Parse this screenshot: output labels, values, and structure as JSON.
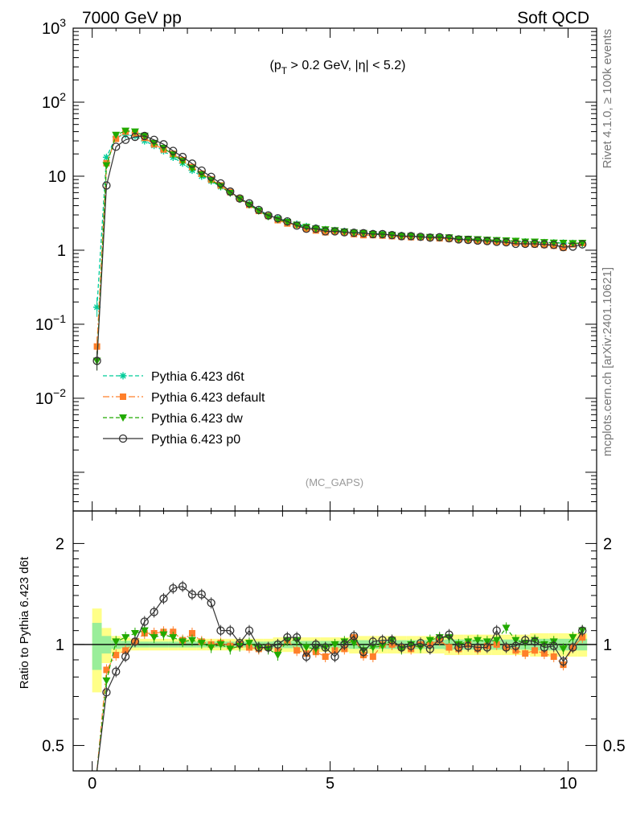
{
  "header": {
    "left": "7000 GeV pp",
    "right": "Soft QCD"
  },
  "cut_label": "(p_T > 0.2 GeV, |η| < 5.2)",
  "analysis_tag": "(MC_GAPS)",
  "side_labels": {
    "rivet": "Rivet 4.1.0, ≥ 100k events",
    "mcplots": "mcplots.cern.ch [arXiv:2401.10621]"
  },
  "colors": {
    "d6t": "#00cc99",
    "default": "#ff7f2a",
    "dw": "#22aa00",
    "p0": "#333333",
    "band_outer": "#ffff88",
    "band_inner": "#99ee99"
  },
  "chart_data": [
    {
      "type": "line",
      "title": "",
      "xlabel": "",
      "ylabel": "",
      "yscale": "log",
      "xlim": [
        -0.4,
        10.6
      ],
      "ylim": [
        0.0003,
        1000
      ],
      "ytick_labels": [
        "10^3",
        "10^2",
        "10",
        "1",
        "10^-1",
        "10^-2"
      ],
      "x": [
        0.1,
        0.3,
        0.5,
        0.7,
        0.9,
        1.1,
        1.3,
        1.5,
        1.7,
        1.9,
        2.1,
        2.3,
        2.5,
        2.7,
        2.9,
        3.1,
        3.3,
        3.5,
        3.7,
        3.9,
        4.1,
        4.3,
        4.5,
        4.7,
        4.9,
        5.1,
        5.3,
        5.5,
        5.7,
        5.9,
        6.1,
        6.3,
        6.5,
        6.7,
        6.9,
        7.1,
        7.3,
        7.5,
        7.7,
        7.9,
        8.1,
        8.3,
        8.5,
        8.7,
        8.9,
        9.1,
        9.3,
        9.5,
        9.7,
        9.9,
        10.1,
        10.3
      ],
      "legend": [
        "Pythia 6.423 d6t",
        "Pythia 6.423 default",
        "Pythia 6.423 dw",
        "Pythia 6.423 p0"
      ],
      "series": [
        {
          "name": "Pythia 6.423 d6t",
          "key": "d6t",
          "style": "dashed",
          "marker": "star",
          "values": [
            0.17,
            18,
            34,
            36,
            35,
            30,
            26,
            22,
            18,
            15,
            12,
            10,
            8.6,
            7.2,
            6.0,
            5.0,
            4.2,
            3.5,
            3.0,
            2.7,
            2.45,
            2.25,
            2.1,
            2.0,
            1.9,
            1.85,
            1.8,
            1.75,
            1.7,
            1.68,
            1.65,
            1.6,
            1.58,
            1.55,
            1.52,
            1.5,
            1.48,
            1.45,
            1.42,
            1.4,
            1.38,
            1.36,
            1.35,
            1.33,
            1.32,
            1.3,
            1.28,
            1.27,
            1.26,
            1.25,
            1.24,
            1.23
          ]
        },
        {
          "name": "Pythia 6.423 default",
          "key": "default",
          "style": "dashdot",
          "marker": "square",
          "values": [
            0.05,
            15,
            32,
            40,
            38,
            33,
            27,
            23,
            20,
            16.5,
            13.3,
            10.8,
            9.0,
            7.5,
            6.1,
            5.0,
            4.1,
            3.4,
            2.9,
            2.55,
            2.3,
            2.2,
            1.95,
            1.85,
            1.75,
            1.8,
            1.75,
            1.65,
            1.6,
            1.6,
            1.58,
            1.55,
            1.52,
            1.5,
            1.5,
            1.48,
            1.45,
            1.43,
            1.4,
            1.38,
            1.35,
            1.33,
            1.3,
            1.28,
            1.26,
            1.22,
            1.2,
            1.18,
            1.15,
            1.08,
            1.2,
            1.25
          ]
        },
        {
          "name": "Pythia 6.423 dw",
          "key": "dw",
          "style": "dashed",
          "marker": "triangle-down",
          "values": [
            0.032,
            14,
            36,
            41,
            40,
            35,
            28,
            24,
            19.5,
            16,
            12.8,
            10.5,
            8.8,
            7.3,
            5.9,
            4.9,
            4.1,
            3.4,
            2.85,
            2.6,
            2.4,
            2.2,
            2.05,
            1.95,
            1.9,
            1.85,
            1.78,
            1.72,
            1.7,
            1.65,
            1.62,
            1.6,
            1.55,
            1.55,
            1.5,
            1.5,
            1.48,
            1.48,
            1.42,
            1.42,
            1.4,
            1.38,
            1.36,
            1.35,
            1.33,
            1.3,
            1.3,
            1.28,
            1.26,
            1.25,
            1.24,
            1.25
          ]
        },
        {
          "name": "Pythia 6.423 p0",
          "key": "p0",
          "style": "solid",
          "marker": "circle-open",
          "values": [
            0.032,
            7.5,
            25,
            31,
            34,
            35,
            31,
            27,
            22,
            18.2,
            14.8,
            11.9,
            9.8,
            8.0,
            6.2,
            5.0,
            4.3,
            3.5,
            2.95,
            2.7,
            2.45,
            2.15,
            1.95,
            1.95,
            1.8,
            1.8,
            1.75,
            1.72,
            1.7,
            1.65,
            1.65,
            1.6,
            1.55,
            1.55,
            1.52,
            1.48,
            1.5,
            1.45,
            1.4,
            1.38,
            1.35,
            1.33,
            1.3,
            1.28,
            1.22,
            1.22,
            1.22,
            1.2,
            1.18,
            1.1,
            1.12,
            1.2
          ]
        }
      ]
    },
    {
      "type": "line",
      "title": "",
      "xlabel": "",
      "ylabel": "Ratio to Pythia 6.423 d6t",
      "yscale": "log",
      "xlim": [
        -0.4,
        10.6
      ],
      "ylim": [
        0.42,
        2.5
      ],
      "yticks": [
        0.5,
        1,
        2
      ],
      "ytick_labels": [
        "0.5",
        "1",
        "2"
      ],
      "xticks": [
        0,
        5,
        10
      ],
      "xtick_labels": [
        "0",
        "5",
        "10"
      ],
      "x": [
        0.1,
        0.3,
        0.5,
        0.7,
        0.9,
        1.1,
        1.3,
        1.5,
        1.7,
        1.9,
        2.1,
        2.3,
        2.5,
        2.7,
        2.9,
        3.1,
        3.3,
        3.5,
        3.7,
        3.9,
        4.1,
        4.3,
        4.5,
        4.7,
        4.9,
        5.1,
        5.3,
        5.5,
        5.7,
        5.9,
        6.1,
        6.3,
        6.5,
        6.7,
        6.9,
        7.1,
        7.3,
        7.5,
        7.7,
        7.9,
        8.1,
        8.3,
        8.5,
        8.7,
        8.9,
        9.1,
        9.3,
        9.5,
        9.7,
        9.9,
        10.1,
        10.3
      ],
      "band_outer_halfwidth": [
        0.28,
        0.12,
        0.06,
        0.05,
        0.04,
        0.04,
        0.04,
        0.04,
        0.04,
        0.04,
        0.04,
        0.04,
        0.04,
        0.04,
        0.04,
        0.04,
        0.04,
        0.04,
        0.04,
        0.05,
        0.05,
        0.05,
        0.05,
        0.05,
        0.05,
        0.05,
        0.05,
        0.06,
        0.06,
        0.06,
        0.06,
        0.06,
        0.06,
        0.06,
        0.06,
        0.06,
        0.06,
        0.07,
        0.07,
        0.07,
        0.07,
        0.07,
        0.07,
        0.07,
        0.07,
        0.07,
        0.08,
        0.08,
        0.08,
        0.08,
        0.08,
        0.08
      ],
      "band_inner_halfwidth": [
        0.16,
        0.06,
        0.03,
        0.025,
        0.02,
        0.02,
        0.02,
        0.02,
        0.02,
        0.02,
        0.02,
        0.02,
        0.02,
        0.02,
        0.02,
        0.02,
        0.02,
        0.02,
        0.02,
        0.025,
        0.025,
        0.025,
        0.025,
        0.025,
        0.025,
        0.025,
        0.025,
        0.03,
        0.03,
        0.03,
        0.03,
        0.03,
        0.03,
        0.03,
        0.03,
        0.03,
        0.03,
        0.035,
        0.035,
        0.035,
        0.035,
        0.035,
        0.035,
        0.035,
        0.035,
        0.035,
        0.04,
        0.04,
        0.04,
        0.04,
        0.04,
        0.04
      ],
      "series": [
        {
          "name": "Pythia 6.423 default",
          "key": "default",
          "style": "dashdot",
          "marker": "square",
          "values": [
            0.3,
            0.84,
            0.93,
            0.96,
            1.02,
            1.08,
            1.08,
            1.09,
            1.09,
            1.03,
            1.08,
            1.02,
            1.0,
            1.01,
            0.99,
            1.0,
            0.98,
            0.97,
            0.98,
            0.96,
            1.03,
            0.96,
            0.94,
            0.95,
            0.92,
            0.96,
            0.97,
            1.05,
            0.93,
            0.92,
            1.0,
            1.0,
            0.98,
            0.97,
            1.0,
            1.0,
            1.03,
            0.98,
            0.97,
            1.0,
            0.97,
            0.99,
            1.0,
            0.98,
            0.96,
            0.94,
            0.96,
            0.94,
            0.92,
            0.87,
            0.98,
            1.05
          ]
        },
        {
          "name": "Pythia 6.423 dw",
          "key": "dw",
          "style": "dashed",
          "marker": "triangle-down",
          "values": [
            0.3,
            0.78,
            1.02,
            1.05,
            1.08,
            1.1,
            1.05,
            1.07,
            1.05,
            1.02,
            1.03,
            1.01,
            0.98,
            1.0,
            0.97,
            0.99,
            1.01,
            0.98,
            0.97,
            0.93,
            1.03,
            1.03,
            0.98,
            0.97,
            0.98,
            1.0,
            1.02,
            1.01,
            0.96,
            0.98,
            0.99,
            1.03,
            0.97,
            1.0,
            0.98,
            1.03,
            1.05,
            1.05,
            1.0,
            1.02,
            1.03,
            1.02,
            1.03,
            1.12,
            1.03,
            1.01,
            1.03,
            1.0,
            1.02,
            0.97,
            1.05,
            1.1
          ]
        },
        {
          "name": "Pythia 6.423 p0",
          "key": "p0",
          "style": "solid",
          "marker": "circle-open",
          "values": [
            0.37,
            0.72,
            0.83,
            0.92,
            1.02,
            1.17,
            1.25,
            1.37,
            1.47,
            1.49,
            1.41,
            1.41,
            1.33,
            1.1,
            1.1,
            1.01,
            1.1,
            0.98,
            0.98,
            1.0,
            1.05,
            1.05,
            0.92,
            1.0,
            0.98,
            0.92,
            1.0,
            1.06,
            0.95,
            1.02,
            1.03,
            1.03,
            0.98,
            0.99,
            1.01,
            0.97,
            1.04,
            1.07,
            0.98,
            0.99,
            0.98,
            0.98,
            1.1,
            0.98,
            0.99,
            1.03,
            1.02,
            0.98,
            0.99,
            0.89,
            0.98,
            1.1
          ]
        }
      ]
    }
  ]
}
